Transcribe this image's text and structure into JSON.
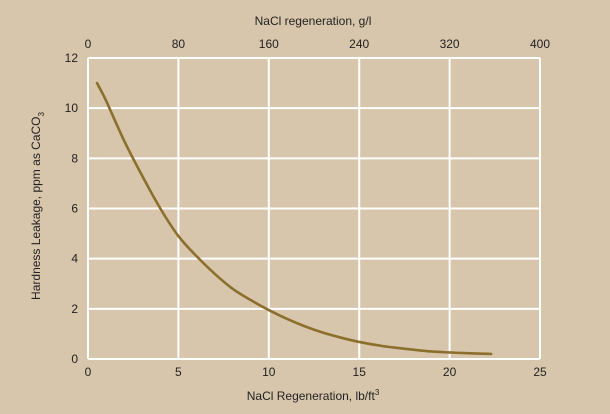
{
  "colors": {
    "background": "#d8c6ac",
    "grid": "#ffffff",
    "curve": "#8c6f2c"
  },
  "chart_data": {
    "type": "line",
    "title": "",
    "xlabel": "NaCl Regeneration, lb/ft",
    "xlabel_sup": "3",
    "ylabel": "Hardness Leakage, ppm as CaCO",
    "ylabel_sub": "3",
    "top_xlabel": "NaCl regeneration, g/l",
    "xlim": [
      0,
      25
    ],
    "ylim": [
      0,
      12
    ],
    "top_xlim": [
      0,
      400
    ],
    "x_ticks": [
      "0",
      "5",
      "10",
      "15",
      "20",
      "25"
    ],
    "y_ticks": [
      "0",
      "2",
      "4",
      "6",
      "8",
      "10",
      "12"
    ],
    "top_x_ticks": [
      "0",
      "80",
      "160",
      "240",
      "320",
      "400"
    ],
    "grid": true,
    "series": [
      {
        "x": [
          0.5,
          1,
          2,
          3,
          4,
          5,
          6,
          7,
          8,
          9,
          10,
          11,
          12,
          13,
          14,
          15,
          16,
          17,
          18,
          19,
          20,
          21,
          22.3
        ],
        "y": [
          11.0,
          10.3,
          8.7,
          7.3,
          6.0,
          4.9,
          4.1,
          3.4,
          2.8,
          2.35,
          1.95,
          1.6,
          1.3,
          1.05,
          0.85,
          0.68,
          0.55,
          0.45,
          0.37,
          0.3,
          0.26,
          0.23,
          0.2
        ]
      }
    ]
  }
}
